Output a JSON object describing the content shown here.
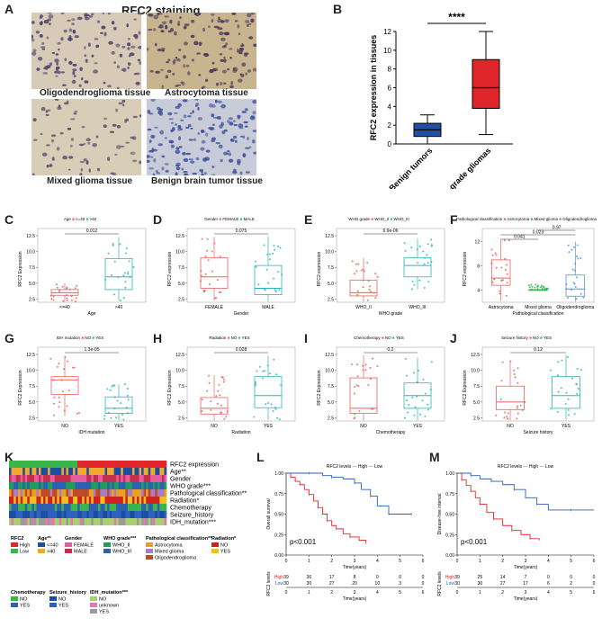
{
  "panels": {
    "A": {
      "label": "A",
      "title": "RFC2 staining",
      "tissues": [
        "Oligodendroglioma tissue",
        "Astrocytoma tissue",
        "Mixed glioma tissue",
        "Benign brain tumor tissue"
      ]
    },
    "B": {
      "label": "B"
    },
    "C": {
      "label": "C"
    },
    "D": {
      "label": "D"
    },
    "E": {
      "label": "E"
    },
    "F": {
      "label": "F"
    },
    "G": {
      "label": "G"
    },
    "H": {
      "label": "H"
    },
    "I": {
      "label": "I"
    },
    "J": {
      "label": "J"
    },
    "K": {
      "label": "K"
    },
    "L": {
      "label": "L"
    },
    "M": {
      "label": "M"
    }
  },
  "chart_data": [
    {
      "id": "B",
      "type": "box",
      "ylabel": "RFC2 expression in tissues",
      "categories": [
        "Benign tumors",
        "Lower-grade gliomas"
      ],
      "ylim": [
        0,
        12
      ],
      "yticks": [
        0,
        2,
        4,
        6,
        8,
        10,
        12
      ],
      "significance": "****",
      "boxes": [
        {
          "min": 0,
          "q1": 0.8,
          "median": 1.5,
          "q3": 2.2,
          "max": 3.1,
          "color": "#1f4ea3"
        },
        {
          "min": 1,
          "q1": 3.8,
          "median": 6,
          "q3": 9,
          "max": 12,
          "color": "#e0262a"
        }
      ]
    },
    {
      "id": "C",
      "type": "box",
      "legend_title": "Age",
      "legend": [
        "<=40",
        ">40"
      ],
      "xlabel": "Age",
      "ylabel": "RFC2 Expression",
      "categories": [
        "<=40",
        ">40"
      ],
      "ylim": [
        2,
        12.5
      ],
      "yticks": [
        2.5,
        5.0,
        7.5,
        10.0,
        12.5
      ],
      "pvalue": "0.012",
      "boxes": [
        {
          "min": 2.1,
          "q1": 3.1,
          "median": 3.5,
          "q3": 4.0,
          "max": 5.0,
          "color": "#e8625a"
        },
        {
          "min": 2.2,
          "q1": 4.0,
          "median": 6.0,
          "q3": 8.9,
          "max": 12.3,
          "color": "#2bb5b8"
        }
      ]
    },
    {
      "id": "D",
      "type": "box",
      "legend_title": "Gender",
      "legend": [
        "FEMALE",
        "MALE"
      ],
      "xlabel": "Gender",
      "ylabel": "RFC2 expression",
      "categories": [
        "FEMALE",
        "MALE"
      ],
      "ylim": [
        2,
        12.5
      ],
      "yticks": [
        2.5,
        5.0,
        7.5,
        10.0,
        12.5
      ],
      "pvalue": "0.075",
      "boxes": [
        {
          "min": 2.3,
          "q1": 4.2,
          "median": 6.0,
          "q3": 9.0,
          "max": 12.3,
          "color": "#e8625a"
        },
        {
          "min": 2.1,
          "q1": 3.2,
          "median": 4.2,
          "q3": 7.8,
          "max": 12.4,
          "color": "#2bb5b8"
        }
      ]
    },
    {
      "id": "E",
      "type": "box",
      "legend_title": "WHO grade",
      "legend": [
        "WHO_II",
        "WHO_III"
      ],
      "xlabel": "WHO grade",
      "ylabel": "RFC2 expression",
      "categories": [
        "WHO_II",
        "WHO_III"
      ],
      "ylim": [
        2,
        12.5
      ],
      "yticks": [
        2.5,
        5.0,
        7.5,
        10.0,
        12.5
      ],
      "pvalue": "6.9e-06",
      "boxes": [
        {
          "min": 2.1,
          "q1": 3.0,
          "median": 3.5,
          "q3": 5.5,
          "max": 9.0,
          "color": "#e8625a"
        },
        {
          "min": 4.0,
          "q1": 6.0,
          "median": 7.8,
          "q3": 9.0,
          "max": 12.0,
          "color": "#2bb5b8"
        }
      ]
    },
    {
      "id": "F",
      "type": "box",
      "legend_title": "Pathological classification",
      "legend": [
        "Astrocytoma",
        "Mixed glioma",
        "Oligodendroglioma"
      ],
      "xlabel": "Pathological classification",
      "ylabel": "RFC2 expression",
      "categories": [
        "Astrocytoma",
        "Mixed glioma",
        "Oligodendroglioma"
      ],
      "ylim": [
        2,
        13
      ],
      "yticks": [
        4,
        8,
        12
      ],
      "pvalues": [
        "0.041",
        "0.023",
        "0.97"
      ],
      "boxes": [
        {
          "min": 2.2,
          "q1": 4.8,
          "median": 6.0,
          "q3": 9.0,
          "max": 12.5,
          "color": "#e8625a"
        },
        {
          "min": 4.0,
          "q1": 4.0,
          "median": 4.0,
          "q3": 4.1,
          "max": 5.0,
          "color": "#3ab54a"
        },
        {
          "min": 2.1,
          "q1": 3.0,
          "median": 4.2,
          "q3": 6.5,
          "max": 12.0,
          "color": "#5b8dd6"
        }
      ]
    },
    {
      "id": "G",
      "type": "box",
      "legend_title": "IDH mutation",
      "legend": [
        "NO",
        "YES"
      ],
      "xlabel": "IDH mutation",
      "ylabel": "RFC2 Expression",
      "categories": [
        "NO",
        "YES"
      ],
      "ylim": [
        2,
        12.5
      ],
      "yticks": [
        2.5,
        5.0,
        7.5,
        10.0,
        12.5
      ],
      "pvalue": "1.3e-05",
      "boxes": [
        {
          "min": 2.8,
          "q1": 6.2,
          "median": 8.5,
          "q3": 9.0,
          "max": 12.3,
          "color": "#e8625a"
        },
        {
          "min": 2.1,
          "q1": 3.2,
          "median": 4.0,
          "q3": 5.8,
          "max": 7.8,
          "color": "#2bb5b8"
        }
      ]
    },
    {
      "id": "H",
      "type": "box",
      "legend_title": "Radiation",
      "legend": [
        "NO",
        "YES"
      ],
      "xlabel": "Radiation",
      "ylabel": "RFC2 Expression",
      "categories": [
        "NO",
        "YES"
      ],
      "ylim": [
        2,
        12.5
      ],
      "yticks": [
        2.5,
        5.0,
        7.5,
        10.0,
        12.5
      ],
      "pvalue": "0.028",
      "boxes": [
        {
          "min": 2.1,
          "q1": 3.1,
          "median": 4.0,
          "q3": 5.7,
          "max": 9.2,
          "color": "#e8625a"
        },
        {
          "min": 2.2,
          "q1": 4.1,
          "median": 6.0,
          "q3": 9.0,
          "max": 12.3,
          "color": "#2bb5b8"
        }
      ]
    },
    {
      "id": "I",
      "type": "box",
      "legend_title": "Chemotherapy",
      "legend": [
        "NO",
        "YES"
      ],
      "xlabel": "Chemotherapy",
      "ylabel": "RFC2 Expression",
      "categories": [
        "NO",
        "YES"
      ],
      "ylim": [
        2,
        12.5
      ],
      "yticks": [
        2.5,
        5.0,
        7.5,
        10.0,
        12.5
      ],
      "pvalue": "0.2",
      "boxes": [
        {
          "min": 2.1,
          "q1": 3.2,
          "median": 4.0,
          "q3": 8.8,
          "max": 12.4,
          "color": "#e8625a"
        },
        {
          "min": 2.1,
          "q1": 4.0,
          "median": 6.0,
          "q3": 8.0,
          "max": 12.0,
          "color": "#2bb5b8"
        }
      ]
    },
    {
      "id": "J",
      "type": "box",
      "legend_title": "Seizure history",
      "legend": [
        "NO",
        "YES"
      ],
      "xlabel": "Seizure history",
      "ylabel": "RFC2 Expression",
      "categories": [
        "NO",
        "YES"
      ],
      "ylim": [
        2,
        12.5
      ],
      "yticks": [
        2.5,
        5.0,
        7.5,
        10.0,
        12.5
      ],
      "pvalue": "0.12",
      "boxes": [
        {
          "min": 2.1,
          "q1": 3.8,
          "median": 5.0,
          "q3": 7.5,
          "max": 11.5,
          "color": "#e8625a"
        },
        {
          "min": 2.2,
          "q1": 4.0,
          "median": 6.0,
          "q3": 9.0,
          "max": 12.4,
          "color": "#2bb5b8"
        }
      ]
    },
    {
      "id": "K",
      "type": "heatmap",
      "rows": [
        "RFC2 expression",
        "Age**",
        "Gender",
        "WHO grade***",
        "Pathological classification**",
        "Radiation*",
        "Chemotherapy",
        "Seizure_history",
        "IDH_mutation***"
      ],
      "legend": [
        {
          "title": "RFC2",
          "items": [
            [
              "High",
              "#e0262a"
            ],
            [
              "Low",
              "#3ab54a"
            ]
          ]
        },
        {
          "title": "Age**",
          "items": [
            [
              "<=40",
              "#1a4fa0"
            ],
            [
              ">40",
              "#f0a830"
            ]
          ]
        },
        {
          "title": "Gender",
          "items": [
            [
              "FEMALE",
              "#e65ca0"
            ],
            [
              "MALE",
              "#c0304a"
            ]
          ]
        },
        {
          "title": "WHO grade***",
          "items": [
            [
              "WHO_II",
              "#1e9e58"
            ],
            [
              "WHO_III",
              "#2f5fb0"
            ]
          ]
        },
        {
          "title": "Pathological classification**",
          "items": [
            [
              "Astrocytoma",
              "#e8a020"
            ],
            [
              "Mixed glioma",
              "#a67ec8"
            ],
            [
              "Oligodendroglioma",
              "#c04a28"
            ]
          ]
        },
        {
          "title": "Radiation*",
          "items": [
            [
              "NO",
              "#d02020"
            ],
            [
              "YES",
              "#f0c020"
            ]
          ]
        },
        {
          "title": "Chemotherapy",
          "items": [
            [
              "NO",
              "#3ab54a"
            ],
            [
              "YES",
              "#2f5fb0"
            ]
          ]
        },
        {
          "title": "Seizure_history",
          "items": [
            [
              "NO",
              "#1a4fa0"
            ],
            [
              "YES",
              "#3060c0"
            ]
          ]
        },
        {
          "title": "IDH_mutation***",
          "items": [
            [
              "NO",
              "#a8d070"
            ],
            [
              "unknown",
              "#e07ab0"
            ],
            [
              "YES",
              "#9a9a9a"
            ]
          ]
        }
      ]
    },
    {
      "id": "L",
      "type": "line",
      "title": "RFC2 levels",
      "legend": [
        "High",
        "Low"
      ],
      "ylabel": "Overall survival",
      "xlabel": "Time(years)",
      "xlim": [
        0,
        6
      ],
      "xticks": [
        0,
        1,
        2,
        3,
        4,
        5,
        6
      ],
      "ylim": [
        0,
        1
      ],
      "yticks": [
        "0.00",
        "0.25",
        "0.50",
        "0.75",
        "1.00"
      ],
      "pvalue": "p<0.001",
      "series": [
        {
          "name": "High",
          "color": "#e0262a",
          "x": [
            0,
            0.2,
            0.4,
            0.6,
            0.8,
            1.0,
            1.2,
            1.4,
            1.6,
            1.8,
            2.0,
            2.2,
            2.5,
            2.8,
            3.2,
            3.5
          ],
          "y": [
            1,
            0.95,
            0.9,
            0.86,
            0.8,
            0.74,
            0.66,
            0.58,
            0.5,
            0.42,
            0.36,
            0.32,
            0.26,
            0.22,
            0.18,
            0.15
          ]
        },
        {
          "name": "Low",
          "color": "#2f5fb0",
          "x": [
            0,
            1.0,
            1.6,
            2.0,
            2.5,
            3.0,
            3.3,
            3.7,
            4.0,
            4.5,
            5.0,
            5.5
          ],
          "y": [
            1,
            1,
            0.97,
            0.95,
            0.93,
            0.88,
            0.8,
            0.72,
            0.6,
            0.5,
            0.5,
            0.5
          ]
        }
      ],
      "risk_table": {
        "ylabel": "RFC2 levels",
        "rows": [
          {
            "name": "High",
            "values": [
              "39",
              "36",
              "17",
              "8",
              "0",
              "0",
              "0"
            ]
          },
          {
            "name": "Low",
            "values": [
              "30",
              "30",
              "27",
              "20",
              "10",
              "3",
              "0"
            ]
          }
        ]
      }
    },
    {
      "id": "M",
      "type": "line",
      "title": "RFC2 levels",
      "legend": [
        "High",
        "Low"
      ],
      "ylabel": "Disease-free interval",
      "xlabel": "Time(years)",
      "xlim": [
        0,
        6
      ],
      "xticks": [
        0,
        1,
        2,
        3,
        4,
        5,
        6
      ],
      "ylim": [
        0,
        1
      ],
      "yticks": [
        "0.00",
        "0.25",
        "0.50",
        "0.75",
        "1.00"
      ],
      "pvalue": "p<0.001",
      "series": [
        {
          "name": "High",
          "color": "#e0262a",
          "x": [
            0,
            0.2,
            0.4,
            0.6,
            0.8,
            1.0,
            1.3,
            1.6,
            2.0,
            2.4,
            2.8,
            3.2,
            3.6
          ],
          "y": [
            1,
            0.92,
            0.85,
            0.78,
            0.7,
            0.62,
            0.52,
            0.44,
            0.36,
            0.3,
            0.25,
            0.2,
            0.18
          ]
        },
        {
          "name": "Low",
          "color": "#2f5fb0",
          "x": [
            0,
            0.6,
            1.0,
            1.5,
            2.0,
            2.5,
            3.0,
            3.5,
            4.0,
            5.0,
            6.0
          ],
          "y": [
            1,
            0.97,
            0.93,
            0.9,
            0.86,
            0.8,
            0.7,
            0.62,
            0.55,
            0.55,
            0.55
          ]
        }
      ],
      "risk_table": {
        "ylabel": "RFC2 levels",
        "rows": [
          {
            "name": "High",
            "values": [
              "39",
              "25",
              "14",
              "7",
              "0",
              "0",
              "0"
            ]
          },
          {
            "name": "Low",
            "values": [
              "30",
              "30",
              "27",
              "17",
              "6",
              "2",
              "0"
            ]
          }
        ]
      }
    }
  ]
}
